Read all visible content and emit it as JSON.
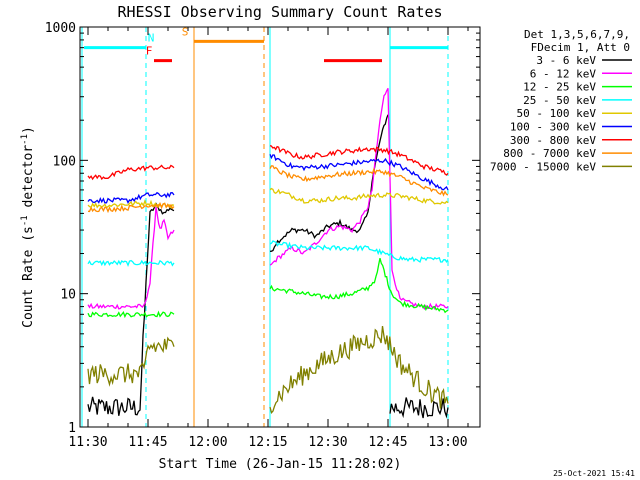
{
  "chart_data": {
    "type": "line",
    "title": "RHESSI Observing Summary Count Rates",
    "xlabel": "Start Time (26-Jan-15 11:28:02)",
    "ylabel_main": "Count Rate (s",
    "ylabel_sup1": "-1",
    "ylabel_mid": " detector",
    "ylabel_sup2": "-1",
    "ylabel_end": ")",
    "y_scale": "log",
    "ylim": [
      1,
      1000
    ],
    "xlim_minutes": [
      0,
      100
    ],
    "x_ticks": [
      {
        "label": "11:30",
        "minute": 2
      },
      {
        "label": "11:45",
        "minute": 17
      },
      {
        "label": "12:00",
        "minute": 32
      },
      {
        "label": "12:15",
        "minute": 47
      },
      {
        "label": "12:30",
        "minute": 62
      },
      {
        "label": "12:45",
        "minute": 77
      },
      {
        "label": "13:00",
        "minute": 92
      }
    ],
    "y_ticks": [
      {
        "label": "1",
        "value": 1
      },
      {
        "label": "10",
        "value": 10
      },
      {
        "label": "100",
        "value": 100
      },
      {
        "label": "1000",
        "value": 1000
      }
    ],
    "legend": {
      "position": "right",
      "header_line1": "Det 1,3,5,6,7,9,",
      "header_line2": "FDecim 1, Att 0"
    },
    "series": [
      {
        "name": "3 - 6 keV",
        "color": "#000000",
        "segments": [
          {
            "x": [
              2,
              7,
              12,
              15,
              16.5,
              17.5,
              19,
              21,
              22.5,
              23.5
            ],
            "y": [
              1.4,
              1.4,
              1.4,
              1.4,
              12,
              40,
              46,
              40,
              44,
              42
            ]
          },
          {
            "x": [
              47.5,
              49,
              51,
              53,
              56,
              59,
              62,
              65,
              68,
              70,
              72,
              73,
              75,
              76,
              77
            ],
            "y": [
              20,
              24,
              27,
              30,
              30,
              27,
              32,
              34,
              30,
              30,
              40,
              70,
              140,
              180,
              220
            ]
          },
          {
            "x": [
              77.5,
              80,
              85,
              90,
              92
            ],
            "y": [
              1.4,
              1.4,
              1.4,
              1.4,
              1.4
            ]
          }
        ]
      },
      {
        "name": "6 - 12 keV",
        "color": "#ff00ff",
        "segments": [
          {
            "x": [
              2,
              7,
              12,
              16,
              17.5,
              19,
              20,
              21,
              22,
              23.5
            ],
            "y": [
              8,
              8,
              8,
              8,
              12,
              45,
              30,
              35,
              26,
              30
            ]
          },
          {
            "x": [
              47.5,
              49,
              51,
              53,
              56,
              59,
              62,
              65,
              68,
              70,
              72,
              73,
              74,
              75,
              76,
              77,
              78,
              80,
              85,
              92
            ],
            "y": [
              16,
              18,
              20,
              22,
              20,
              24,
              30,
              32,
              30,
              35,
              45,
              60,
              110,
              200,
              300,
              360,
              15,
              9,
              8,
              8
            ]
          }
        ]
      },
      {
        "name": "12 - 25 keV",
        "color": "#00ff00",
        "segments": [
          {
            "x": [
              2,
              7,
              12,
              17,
              20,
              23.5
            ],
            "y": [
              7,
              7,
              7,
              7,
              7,
              7
            ]
          },
          {
            "x": [
              47.5,
              52,
              56,
              60,
              64,
              68,
              72,
              74,
              75,
              76,
              77,
              78,
              80,
              85,
              92
            ],
            "y": [
              11,
              10.5,
              10,
              9.5,
              9.5,
              10,
              11,
              13,
              18,
              15,
              12,
              10,
              8.5,
              8,
              7.5
            ]
          }
        ]
      },
      {
        "name": "25 - 50 keV",
        "color": "#00ffff",
        "segments": [
          {
            "x": [
              2,
              7,
              12,
              17,
              20,
              23.5
            ],
            "y": [
              17,
              17,
              17,
              17,
              17,
              17
            ]
          },
          {
            "x": [
              47.5,
              52,
              56,
              60,
              64,
              68,
              72,
              76,
              78,
              82,
              88,
              92
            ],
            "y": [
              24,
              23,
              22,
              22,
              22,
              22,
              22,
              20,
              19,
              18,
              18,
              18
            ]
          }
        ]
      },
      {
        "name": "50 - 100 keV",
        "color": "#e0c800",
        "segments": [
          {
            "x": [
              2,
              7,
              12,
              17,
              20,
              23.5
            ],
            "y": [
              46,
              46,
              47,
              48,
              46,
              46
            ]
          },
          {
            "x": [
              47.5,
              50,
              53,
              56,
              60,
              64,
              68,
              72,
              76,
              80,
              86,
              92
            ],
            "y": [
              60,
              58,
              54,
              50,
              50,
              52,
              52,
              54,
              55,
              54,
              50,
              48
            ]
          }
        ]
      },
      {
        "name": "100 - 300 keV",
        "color": "#0000ff",
        "segments": [
          {
            "x": [
              2,
              7,
              12,
              17,
              20,
              23.5
            ],
            "y": [
              50,
              50,
              50,
              55,
              55,
              55
            ]
          },
          {
            "x": [
              47.5,
              50,
              53,
              56,
              60,
              64,
              68,
              72,
              76,
              80,
              86,
              92
            ],
            "y": [
              110,
              100,
              90,
              88,
              90,
              92,
              95,
              98,
              100,
              90,
              72,
              60
            ]
          }
        ]
      },
      {
        "name": "300 - 800 keV",
        "color": "#ff0000",
        "segments": [
          {
            "x": [
              2,
              7,
              12,
              17,
              20,
              23.5
            ],
            "y": [
              75,
              75,
              85,
              88,
              88,
              88
            ]
          },
          {
            "x": [
              47.5,
              50,
              53,
              56,
              60,
              64,
              68,
              72,
              76,
              80,
              86,
              92
            ],
            "y": [
              130,
              120,
              110,
              105,
              110,
              115,
              118,
              122,
              120,
              110,
              90,
              80
            ]
          }
        ]
      },
      {
        "name": "800 - 7000 keV",
        "color": "#ff8c00",
        "segments": [
          {
            "x": [
              2,
              7,
              12,
              17,
              20,
              23.5
            ],
            "y": [
              43,
              43,
              44,
              46,
              46,
              45
            ]
          },
          {
            "x": [
              47.5,
              50,
              53,
              56,
              60,
              64,
              68,
              72,
              76,
              80,
              86,
              92
            ],
            "y": [
              90,
              82,
              75,
              72,
              75,
              78,
              80,
              82,
              82,
              75,
              62,
              55
            ]
          }
        ]
      },
      {
        "name": "7000 - 15000 keV",
        "color": "#808000",
        "segments": [
          {
            "x": [
              2,
              7,
              12,
              16,
              17,
              20,
              23.5
            ],
            "y": [
              2.5,
              2.5,
              2.5,
              2.5,
              4,
              4,
              4
            ]
          },
          {
            "x": [
              47.5,
              52,
              56,
              60,
              64,
              68,
              72,
              76,
              80,
              86,
              92
            ],
            "y": [
              1.5,
              2,
              2.5,
              3,
              3.5,
              4,
              4.5,
              5,
              3,
              2,
              1.5
            ]
          }
        ]
      }
    ],
    "flags": [
      {
        "label": "N",
        "color": "#00ffff",
        "x0": 1,
        "x1": 16.5,
        "y": 700
      },
      {
        "label": "F",
        "color": "#ff0000",
        "x0": 18.5,
        "x1": 23,
        "y": 560
      },
      {
        "label": "S",
        "color": "#ff8c00",
        "x0": 28.5,
        "x1": 46,
        "y": 780
      },
      {
        "label": "",
        "color": "#ff0000",
        "x0": 61,
        "x1": 75.5,
        "y": 560
      },
      {
        "label": "",
        "color": "#00ffff",
        "x0": 77.5,
        "x1": 92,
        "y": 700
      }
    ],
    "boundaries": [
      {
        "minute": 16.5,
        "color": "#00ffff",
        "style": "dashed"
      },
      {
        "minute": 28.5,
        "color": "#ff8c00",
        "style": "solid"
      },
      {
        "minute": 46,
        "color": "#ff8c00",
        "style": "dashed"
      },
      {
        "minute": 47.5,
        "color": "#00ffff",
        "style": "solid"
      },
      {
        "minute": 77.5,
        "color": "#00ffff",
        "style": "solid"
      },
      {
        "minute": 92,
        "color": "#00ffff",
        "style": "dashed"
      },
      {
        "minute": 0.5,
        "color": "#00ffff",
        "style": "solid"
      }
    ]
  },
  "footer": {
    "timestamp": "25-Oct-2021 15:41"
  }
}
